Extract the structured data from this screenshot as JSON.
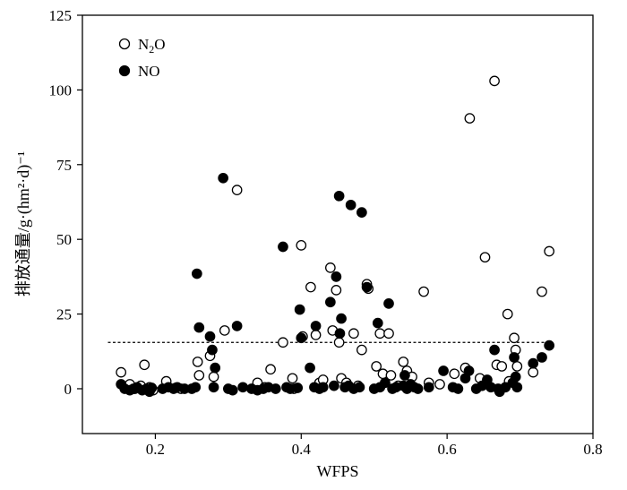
{
  "chart_data": {
    "type": "scatter",
    "title": "",
    "xlabel": "WFPS",
    "ylabel": "排放通量/g·(hm²·d)⁻¹",
    "xlim": [
      0.1,
      0.8
    ],
    "ylim": [
      -15,
      125
    ],
    "xticks": [
      0.2,
      0.4,
      0.6,
      0.8
    ],
    "xtick_labels": [
      "0.2",
      "0.4",
      "0.6",
      "0.8"
    ],
    "yticks": [
      0,
      25,
      50,
      75,
      100,
      125
    ],
    "ytick_labels": [
      "0",
      "25",
      "50",
      "75",
      "100",
      "125"
    ],
    "grid": false,
    "legend_position": "top-left",
    "reference_line": {
      "y": 15.5,
      "x_range": [
        0.135,
        0.745
      ],
      "style": "dashed"
    },
    "series": [
      {
        "name": "N2O",
        "marker": "open-circle",
        "legend_label": {
          "base": "N",
          "sub": "2",
          "tail": "O"
        },
        "points": [
          [
            0.153,
            5.5
          ],
          [
            0.165,
            1.5
          ],
          [
            0.172,
            0.0
          ],
          [
            0.18,
            1.0
          ],
          [
            0.185,
            8.0
          ],
          [
            0.192,
            0.5
          ],
          [
            0.197,
            -0.5
          ],
          [
            0.215,
            2.5
          ],
          [
            0.228,
            0.3
          ],
          [
            0.235,
            0.0
          ],
          [
            0.258,
            9.0
          ],
          [
            0.26,
            4.5
          ],
          [
            0.275,
            11.0
          ],
          [
            0.28,
            4.0
          ],
          [
            0.295,
            19.5
          ],
          [
            0.312,
            66.5
          ],
          [
            0.34,
            2.0
          ],
          [
            0.35,
            0.5
          ],
          [
            0.358,
            6.5
          ],
          [
            0.375,
            15.5
          ],
          [
            0.388,
            3.5
          ],
          [
            0.39,
            0.0
          ],
          [
            0.4,
            48.0
          ],
          [
            0.402,
            17.5
          ],
          [
            0.413,
            34.0
          ],
          [
            0.42,
            18.0
          ],
          [
            0.425,
            2.0
          ],
          [
            0.43,
            3.0
          ],
          [
            0.44,
            40.5
          ],
          [
            0.443,
            19.5
          ],
          [
            0.448,
            33.0
          ],
          [
            0.452,
            15.5
          ],
          [
            0.455,
            3.5
          ],
          [
            0.462,
            2.0
          ],
          [
            0.472,
            18.5
          ],
          [
            0.478,
            1.0
          ],
          [
            0.483,
            13.0
          ],
          [
            0.49,
            35.0
          ],
          [
            0.492,
            33.5
          ],
          [
            0.503,
            7.5
          ],
          [
            0.508,
            18.5
          ],
          [
            0.512,
            5.0
          ],
          [
            0.52,
            18.5
          ],
          [
            0.523,
            4.5
          ],
          [
            0.533,
            1.0
          ],
          [
            0.54,
            9.0
          ],
          [
            0.545,
            6.0
          ],
          [
            0.552,
            4.0
          ],
          [
            0.568,
            32.5
          ],
          [
            0.575,
            2.0
          ],
          [
            0.59,
            1.5
          ],
          [
            0.61,
            5.0
          ],
          [
            0.625,
            7.0
          ],
          [
            0.631,
            90.5
          ],
          [
            0.645,
            3.5
          ],
          [
            0.652,
            44.0
          ],
          [
            0.665,
            103.0
          ],
          [
            0.668,
            8.0
          ],
          [
            0.675,
            7.5
          ],
          [
            0.683,
            25.0
          ],
          [
            0.685,
            2.5
          ],
          [
            0.692,
            17.0
          ],
          [
            0.694,
            13.0
          ],
          [
            0.696,
            7.5
          ],
          [
            0.718,
            5.5
          ],
          [
            0.73,
            32.5
          ],
          [
            0.74,
            46.0
          ]
        ]
      },
      {
        "name": "NO",
        "marker": "filled-circle",
        "legend_label": {
          "base": "NO",
          "sub": "",
          "tail": ""
        },
        "points": [
          [
            0.153,
            1.5
          ],
          [
            0.158,
            0.0
          ],
          [
            0.165,
            -0.5
          ],
          [
            0.17,
            0.0
          ],
          [
            0.175,
            0.5
          ],
          [
            0.182,
            -0.5
          ],
          [
            0.188,
            0.0
          ],
          [
            0.192,
            -1.0
          ],
          [
            0.195,
            0.3
          ],
          [
            0.21,
            0.0
          ],
          [
            0.218,
            0.5
          ],
          [
            0.225,
            0.0
          ],
          [
            0.23,
            0.5
          ],
          [
            0.24,
            0.0
          ],
          [
            0.25,
            0.0
          ],
          [
            0.255,
            0.5
          ],
          [
            0.257,
            38.5
          ],
          [
            0.26,
            20.5
          ],
          [
            0.275,
            17.5
          ],
          [
            0.278,
            13.0
          ],
          [
            0.28,
            0.5
          ],
          [
            0.282,
            7.0
          ],
          [
            0.293,
            70.5
          ],
          [
            0.3,
            0.0
          ],
          [
            0.306,
            -0.5
          ],
          [
            0.312,
            21.0
          ],
          [
            0.32,
            0.5
          ],
          [
            0.332,
            0.0
          ],
          [
            0.34,
            -0.5
          ],
          [
            0.348,
            0.0
          ],
          [
            0.355,
            0.5
          ],
          [
            0.365,
            0.0
          ],
          [
            0.375,
            47.5
          ],
          [
            0.38,
            0.5
          ],
          [
            0.385,
            0.0
          ],
          [
            0.395,
            0.3
          ],
          [
            0.398,
            26.5
          ],
          [
            0.4,
            17.0
          ],
          [
            0.412,
            7.0
          ],
          [
            0.418,
            0.5
          ],
          [
            0.42,
            21.0
          ],
          [
            0.425,
            0.0
          ],
          [
            0.43,
            0.5
          ],
          [
            0.44,
            29.0
          ],
          [
            0.445,
            1.0
          ],
          [
            0.448,
            37.5
          ],
          [
            0.452,
            64.5
          ],
          [
            0.453,
            18.5
          ],
          [
            0.455,
            23.5
          ],
          [
            0.46,
            0.5
          ],
          [
            0.465,
            1.0
          ],
          [
            0.468,
            61.5
          ],
          [
            0.472,
            0.0
          ],
          [
            0.48,
            0.5
          ],
          [
            0.483,
            59.0
          ],
          [
            0.49,
            34.0
          ],
          [
            0.5,
            0.0
          ],
          [
            0.505,
            22.0
          ],
          [
            0.508,
            0.5
          ],
          [
            0.515,
            2.0
          ],
          [
            0.52,
            28.5
          ],
          [
            0.525,
            0.0
          ],
          [
            0.53,
            0.5
          ],
          [
            0.54,
            1.0
          ],
          [
            0.542,
            4.5
          ],
          [
            0.545,
            0.0
          ],
          [
            0.55,
            1.5
          ],
          [
            0.555,
            0.5
          ],
          [
            0.56,
            0.0
          ],
          [
            0.575,
            0.5
          ],
          [
            0.595,
            6.0
          ],
          [
            0.608,
            0.5
          ],
          [
            0.615,
            0.0
          ],
          [
            0.625,
            3.5
          ],
          [
            0.63,
            6.0
          ],
          [
            0.64,
            0.0
          ],
          [
            0.648,
            1.0
          ],
          [
            0.655,
            3.0
          ],
          [
            0.66,
            0.5
          ],
          [
            0.665,
            13.0
          ],
          [
            0.67,
            0.0
          ],
          [
            0.672,
            -1.0
          ],
          [
            0.68,
            0.5
          ],
          [
            0.69,
            2.0
          ],
          [
            0.692,
            10.5
          ],
          [
            0.694,
            4.0
          ],
          [
            0.696,
            0.5
          ],
          [
            0.718,
            8.5
          ],
          [
            0.73,
            10.5
          ],
          [
            0.74,
            14.5
          ]
        ]
      }
    ]
  }
}
